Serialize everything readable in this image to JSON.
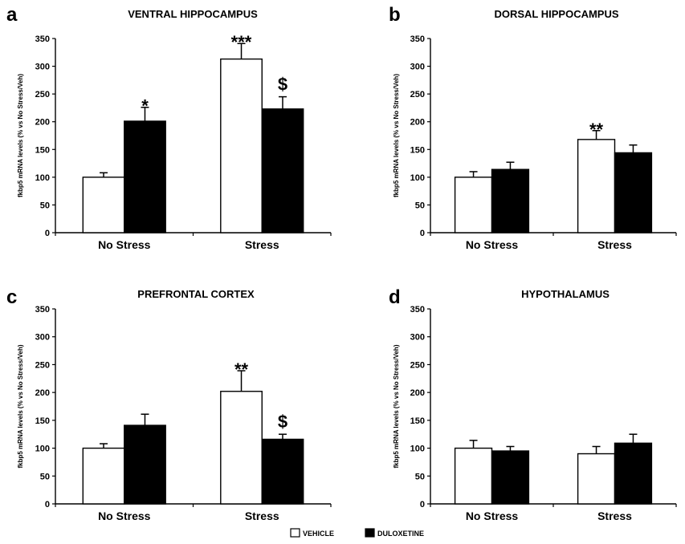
{
  "legend": [
    {
      "name": "VEHICLE",
      "color": "#ffffff"
    },
    {
      "name": "DULOXETINE",
      "color": "#000000"
    }
  ],
  "chart_data": [
    {
      "panel": "a",
      "type": "bar",
      "title": "VENTRAL HIPPOCAMPUS",
      "ylabel": "fkbp5 mRNA levels (% vs No Stress/Veh)",
      "categories": [
        "No Stress",
        "Stress"
      ],
      "ylim": [
        0,
        350
      ],
      "yticks": [
        0,
        50,
        100,
        150,
        200,
        250,
        300,
        350
      ],
      "series": [
        {
          "name": "VEHICLE",
          "values": [
            100,
            313
          ],
          "errors": [
            8,
            28
          ]
        },
        {
          "name": "DULOXETINE",
          "values": [
            201,
            223
          ],
          "errors": [
            25,
            22
          ]
        }
      ],
      "annotations": [
        {
          "category": 0,
          "series": 1,
          "text": "*"
        },
        {
          "category": 1,
          "series": 0,
          "text": "***"
        },
        {
          "category": 1,
          "series": 1,
          "text": "$"
        }
      ]
    },
    {
      "panel": "b",
      "type": "bar",
      "title": "DORSAL HIPPOCAMPUS",
      "ylabel": "fkbp5 mRNA levels (% vs No Stress/Veh)",
      "categories": [
        "No Stress",
        "Stress"
      ],
      "ylim": [
        0,
        350
      ],
      "yticks": [
        0,
        50,
        100,
        150,
        200,
        250,
        300,
        350
      ],
      "series": [
        {
          "name": "VEHICLE",
          "values": [
            100,
            168
          ],
          "errors": [
            10,
            16
          ]
        },
        {
          "name": "DULOXETINE",
          "values": [
            114,
            144
          ],
          "errors": [
            13,
            14
          ]
        }
      ],
      "annotations": [
        {
          "category": 1,
          "series": 0,
          "text": "**"
        }
      ]
    },
    {
      "panel": "c",
      "type": "bar",
      "title": "PREFRONTAL CORTEX",
      "ylabel": "fkbp5 mRNA levels (% vs No Stress/Veh)",
      "categories": [
        "No Stress",
        "Stress"
      ],
      "ylim": [
        0,
        350
      ],
      "yticks": [
        0,
        50,
        100,
        150,
        200,
        250,
        300,
        350
      ],
      "series": [
        {
          "name": "VEHICLE",
          "values": [
            100,
            202
          ],
          "errors": [
            8,
            37
          ]
        },
        {
          "name": "DULOXETINE",
          "values": [
            141,
            116
          ],
          "errors": [
            20,
            9
          ]
        }
      ],
      "annotations": [
        {
          "category": 1,
          "series": 0,
          "text": "**"
        },
        {
          "category": 1,
          "series": 1,
          "text": "$"
        }
      ]
    },
    {
      "panel": "d",
      "type": "bar",
      "title": "HYPOTHALAMUS",
      "ylabel": "fkbp5 mRNA levels (% vs No Stress/Veh)",
      "categories": [
        "No Stress",
        "Stress"
      ],
      "ylim": [
        0,
        350
      ],
      "yticks": [
        0,
        50,
        100,
        150,
        200,
        250,
        300,
        350
      ],
      "series": [
        {
          "name": "VEHICLE",
          "values": [
            100,
            90
          ],
          "errors": [
            14,
            13
          ]
        },
        {
          "name": "DULOXETINE",
          "values": [
            95,
            109
          ],
          "errors": [
            8,
            16
          ]
        }
      ],
      "annotations": []
    }
  ]
}
